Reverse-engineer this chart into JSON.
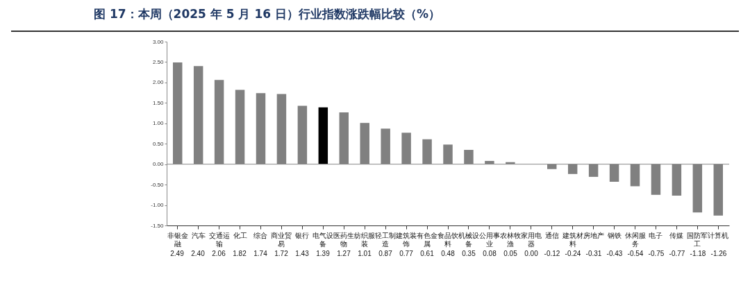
{
  "chart_data": {
    "type": "bar",
    "title": "图 17：本周（2025 年 5 月 16 日）行业指数涨跌幅比较（%）",
    "categories": [
      "非银金融",
      "汽车",
      "交通运输",
      "化工",
      "综合",
      "商业贸易",
      "银行",
      "电气设备",
      "医药生物",
      "纺织服装",
      "轻工制造",
      "建筑装饰",
      "有色金属",
      "食品饮料",
      "机械设备",
      "公用事业",
      "农林牧渔",
      "家用电器",
      "通信",
      "建筑材料",
      "房地产",
      "钢铁",
      "休闲服务",
      "电子",
      "传媒",
      "国防军工",
      "计算机"
    ],
    "values": [
      2.49,
      2.4,
      2.06,
      1.82,
      1.74,
      1.72,
      1.43,
      1.39,
      1.27,
      1.01,
      0.87,
      0.77,
      0.61,
      0.48,
      0.35,
      0.08,
      0.05,
      0.0,
      -0.12,
      -0.24,
      -0.31,
      -0.43,
      -0.54,
      -0.75,
      -0.77,
      -1.18,
      -1.26
    ],
    "colors": [
      "#808080",
      "#808080",
      "#808080",
      "#808080",
      "#808080",
      "#808080",
      "#808080",
      "#000000",
      "#808080",
      "#808080",
      "#808080",
      "#808080",
      "#808080",
      "#808080",
      "#808080",
      "#808080",
      "#808080",
      "#808080",
      "#808080",
      "#808080",
      "#808080",
      "#808080",
      "#808080",
      "#808080",
      "#808080",
      "#808080",
      "#808080"
    ],
    "ylim": [
      -1.5,
      3
    ],
    "yticks": [
      {
        "value": -1.5,
        "label": "-1.50"
      },
      {
        "value": -1,
        "label": "-1.00"
      },
      {
        "value": -0.5,
        "label": "-0.50"
      },
      {
        "value": 0,
        "label": "0.00"
      },
      {
        "value": 0.5,
        "label": "0.50"
      },
      {
        "value": 1,
        "label": "1.00"
      },
      {
        "value": 1.5,
        "label": "1.50"
      },
      {
        "value": 2,
        "label": "2.00"
      },
      {
        "value": 2.5,
        "label": "2.50"
      },
      {
        "value": 3,
        "label": "3.00"
      }
    ],
    "ref_lines": [
      {
        "axis": "y",
        "value": 0
      }
    ],
    "value_labels": [
      "2.49",
      "2.40",
      "2.06",
      "1.82",
      "1.74",
      "1.72",
      "1.43",
      "1.39",
      "1.27",
      "1.01",
      "0.87",
      "0.77",
      "0.61",
      "0.48",
      "0.35",
      "0.08",
      "0.05",
      "0.00",
      "-0.12",
      "-0.24",
      "-0.31",
      "-0.43",
      "-0.54",
      "-0.75",
      "-0.77",
      "-1.18",
      "-1.26"
    ],
    "grid": false
  }
}
